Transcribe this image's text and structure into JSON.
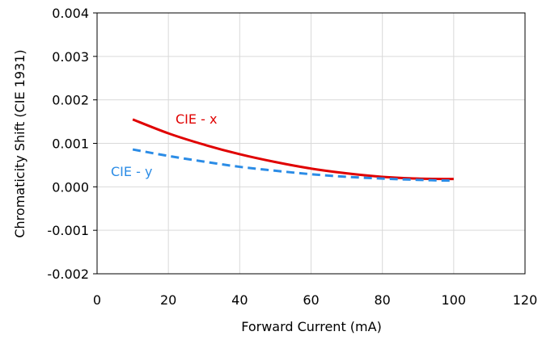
{
  "chart_data": {
    "type": "line",
    "xlabel": "Forward Current (mA)",
    "ylabel": "Chromaticity Shift (CIE 1931)",
    "xlim": [
      0,
      120
    ],
    "ylim": [
      -0.002,
      0.004
    ],
    "x_ticks": [
      "0",
      "20",
      "40",
      "60",
      "80",
      "100",
      "120"
    ],
    "y_ticks": [
      "-0.002",
      "-0.001",
      "0.000",
      "0.001",
      "0.002",
      "0.003",
      "0.004"
    ],
    "grid": true,
    "series": [
      {
        "name": "CIE - x",
        "color": "#e00000",
        "line_style": "solid",
        "x": [
          10,
          20,
          30,
          40,
          50,
          60,
          70,
          80,
          90,
          100
        ],
        "y": [
          0.00155,
          0.00123,
          0.00097,
          0.00075,
          0.00057,
          0.00042,
          0.00031,
          0.00023,
          0.00019,
          0.00018
        ]
      },
      {
        "name": "CIE - y",
        "color": "#2b8ce6",
        "line_style": "dashed",
        "x": [
          10,
          20,
          30,
          40,
          50,
          60,
          70,
          80,
          90,
          100
        ],
        "y": [
          0.00086,
          0.00071,
          0.00058,
          0.00046,
          0.00037,
          0.00029,
          0.00023,
          0.00019,
          0.00016,
          0.00014
        ]
      }
    ]
  }
}
